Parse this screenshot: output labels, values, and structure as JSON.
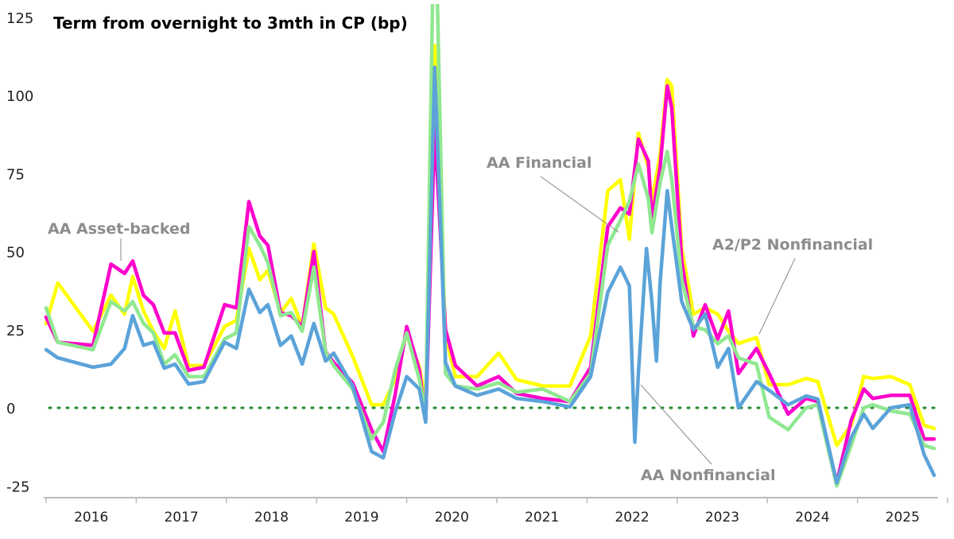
{
  "chart_data": {
    "type": "line",
    "title": "Term from overnight to 3mth in CP (bp)",
    "xlabel": "",
    "ylabel": "",
    "ylim": [
      -25,
      125
    ],
    "xlim": [
      2016.0,
      2025.9
    ],
    "yticks": [
      125,
      100,
      75,
      50,
      25,
      0,
      -25
    ],
    "xtick_labels": [
      "2016",
      "2017",
      "2018",
      "2019",
      "2020",
      "2021",
      "2022",
      "2023",
      "2024",
      "2025"
    ],
    "reference_line": {
      "value": 0,
      "style": "dotted",
      "color": "#1e8a2e"
    },
    "grid": false,
    "x": [
      2016.0,
      2016.13,
      2016.52,
      2016.72,
      2016.87,
      2016.96,
      2017.08,
      2017.19,
      2017.31,
      2017.43,
      2017.58,
      2017.75,
      2017.98,
      2018.11,
      2018.25,
      2018.37,
      2018.46,
      2018.6,
      2018.72,
      2018.84,
      2018.97,
      2019.1,
      2019.19,
      2019.4,
      2019.61,
      2019.74,
      2019.87,
      2020.0,
      2020.14,
      2020.21,
      2020.31,
      2020.43,
      2020.54,
      2020.78,
      2021.02,
      2021.22,
      2021.51,
      2021.81,
      2022.04,
      2022.23,
      2022.37,
      2022.47,
      2022.57,
      2022.68,
      2022.72,
      2022.81,
      2022.89,
      2022.94,
      2023.05,
      2023.18,
      2023.31,
      2023.45,
      2023.57,
      2023.68,
      2023.88,
      2024.02,
      2024.23,
      2024.43,
      2024.56,
      2024.77,
      2024.93,
      2025.07,
      2025.17,
      2025.37,
      2025.58,
      2025.74,
      2025.85
    ],
    "series": [
      {
        "name": "A2/P2 Nonfinancial",
        "color": "#ffff00",
        "values": [
          27,
          40,
          24.5,
          36,
          30,
          42,
          31,
          24.5,
          19,
          31,
          13.5,
          13.5,
          26,
          28,
          51,
          41,
          44,
          30.5,
          35,
          26,
          52.5,
          32,
          30,
          16.5,
          1,
          1,
          9,
          24,
          13,
          2,
          116,
          23,
          10,
          10,
          17.5,
          9,
          7,
          7,
          23,
          69.5,
          73,
          54,
          88,
          77,
          66,
          81,
          105,
          103,
          51,
          30,
          32,
          30,
          24.5,
          20.6,
          22.5,
          7.4,
          7.4,
          9.4,
          8.4,
          -12,
          -5.6,
          10,
          9.4,
          10,
          7.4,
          -5.6,
          -6.6
        ]
      },
      {
        "name": "AA Asset-backed",
        "color": "#ff00cc",
        "values": [
          29,
          21,
          20,
          46,
          43,
          47,
          36,
          33,
          24,
          24,
          12,
          13,
          33,
          32,
          66,
          55,
          52,
          30.5,
          29.5,
          26,
          50,
          18,
          14.5,
          8,
          -7,
          -14,
          4,
          26,
          12,
          -4,
          90,
          25,
          13.5,
          7,
          10,
          4.6,
          3,
          2,
          13,
          58,
          64,
          62,
          86,
          79,
          60,
          77,
          103,
          96,
          47,
          23,
          33,
          22,
          31,
          11,
          19,
          11,
          -2,
          3,
          2,
          -24,
          -4,
          6,
          3,
          4,
          4,
          -10,
          -10
        ]
      },
      {
        "name": "AA Financial",
        "color": "#90e890",
        "values": [
          32,
          21,
          18.6,
          34,
          31,
          34,
          27,
          24,
          14,
          17,
          10,
          10,
          22,
          24,
          58,
          52,
          46.5,
          29.5,
          30.5,
          24.5,
          45,
          18,
          13.5,
          6,
          -10,
          -4.6,
          12,
          24,
          9,
          -1.5,
          170,
          11,
          7,
          6,
          8,
          5,
          6,
          2,
          11,
          52,
          60,
          66,
          78,
          67,
          56,
          72,
          82,
          73,
          41,
          26,
          25,
          20.5,
          23,
          16,
          14,
          -3,
          -7,
          0,
          1,
          -25,
          -12,
          0,
          1,
          -1,
          -2,
          -12,
          -13
        ]
      },
      {
        "name": "AA Nonfinancial",
        "color": "#5ba3d9",
        "x": [
          2016.0,
          2016.13,
          2016.52,
          2016.72,
          2016.87,
          2016.96,
          2017.08,
          2017.19,
          2017.31,
          2017.43,
          2017.58,
          2017.75,
          2017.98,
          2018.11,
          2018.25,
          2018.37,
          2018.46,
          2018.6,
          2018.72,
          2018.84,
          2018.97,
          2019.1,
          2019.19,
          2019.4,
          2019.61,
          2019.74,
          2019.87,
          2020.0,
          2020.14,
          2020.21,
          2020.31,
          2020.43,
          2020.54,
          2020.78,
          2021.02,
          2021.22,
          2021.51,
          2021.81,
          2022.04,
          2022.23,
          2022.37,
          2022.47,
          2022.53,
          2022.57,
          2022.66,
          2022.72,
          2022.77,
          2022.81,
          2022.89,
          2022.94,
          2023.05,
          2023.18,
          2023.31,
          2023.45,
          2023.57,
          2023.68,
          2023.88,
          2024.02,
          2024.23,
          2024.43,
          2024.56,
          2024.77,
          2024.93,
          2025.07,
          2025.17,
          2025.37,
          2025.58,
          2025.74,
          2025.85
        ],
        "values": [
          18.6,
          16,
          13,
          14,
          19,
          29.5,
          20,
          21,
          12.7,
          14,
          7.6,
          8.4,
          21,
          19,
          38,
          30.5,
          33,
          20,
          23,
          14,
          27,
          15,
          17.5,
          7,
          -14,
          -16,
          -1.5,
          10,
          6,
          -4.6,
          109,
          14.5,
          7,
          4,
          6,
          3,
          2,
          0.3,
          10,
          37,
          45,
          39,
          -11,
          11,
          51,
          34,
          15,
          40,
          69.5,
          58,
          34,
          25,
          30,
          13,
          19,
          0,
          8.4,
          5.6,
          1,
          3.8,
          2.8,
          -24,
          -9.5,
          -2,
          -6.6,
          0,
          1,
          -15,
          -21.6
        ]
      }
    ],
    "annotations": [
      "AA Asset-backed",
      "AA Financial",
      "A2/P2 Nonfinancial",
      "AA Nonfinancial"
    ]
  }
}
